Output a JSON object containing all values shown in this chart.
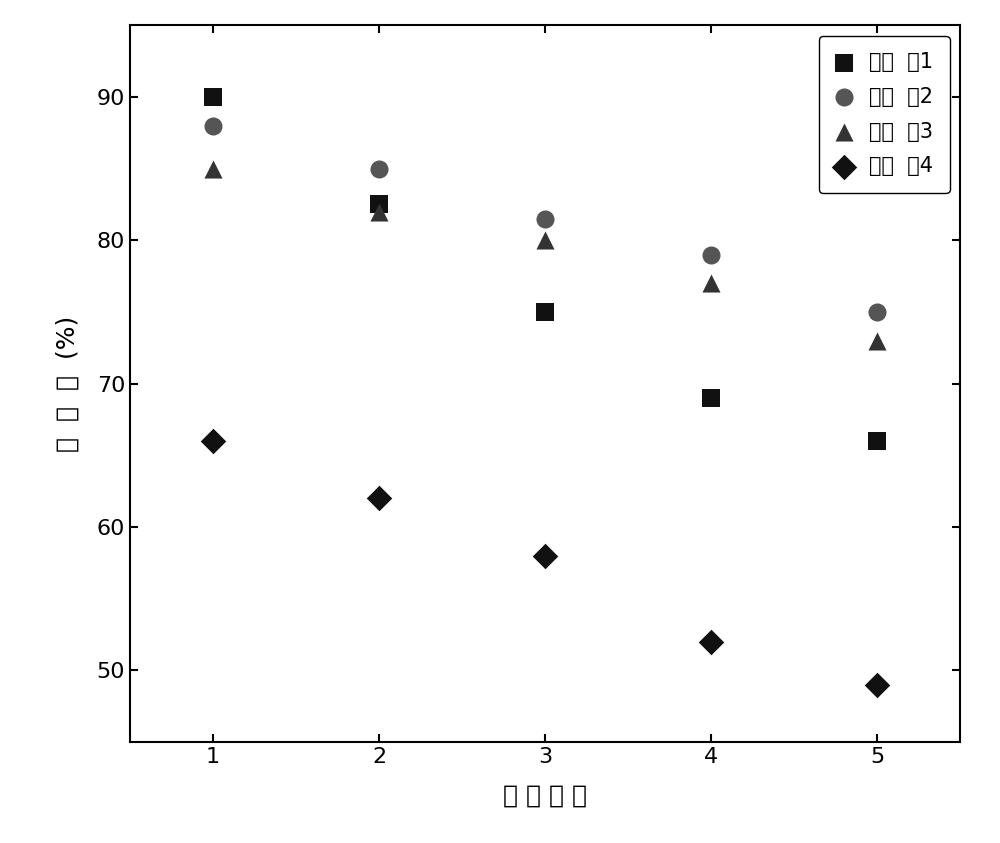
{
  "x": [
    1,
    2,
    3,
    4,
    5
  ],
  "series": [
    {
      "label": "对比  例1",
      "values": [
        90,
        82.5,
        75,
        69,
        66
      ],
      "marker": "s",
      "color": "#111111"
    },
    {
      "label": "对比  例2",
      "values": [
        88,
        85,
        81.5,
        79,
        75
      ],
      "marker": "o",
      "color": "#555555"
    },
    {
      "label": "对比  例3",
      "values": [
        85,
        82,
        80,
        77,
        73
      ],
      "marker": "^",
      "color": "#333333"
    },
    {
      "label": "对比  例4",
      "values": [
        66,
        62,
        58,
        52,
        49
      ],
      "marker": "D",
      "color": "#111111"
    }
  ],
  "xlabel": "使 用 次 数",
  "ylabel_chars": [
    "转",
    "化",
    "率",
    "(%)",
    ""
  ],
  "ylabel_rotation": 90,
  "xlim": [
    0.5,
    5.5
  ],
  "ylim": [
    45,
    95
  ],
  "yticks": [
    50,
    60,
    70,
    80,
    90
  ],
  "xticks": [
    1,
    2,
    3,
    4,
    5
  ],
  "marker_size": 13,
  "legend_fontsize": 15,
  "axis_fontsize": 18,
  "tick_fontsize": 16
}
